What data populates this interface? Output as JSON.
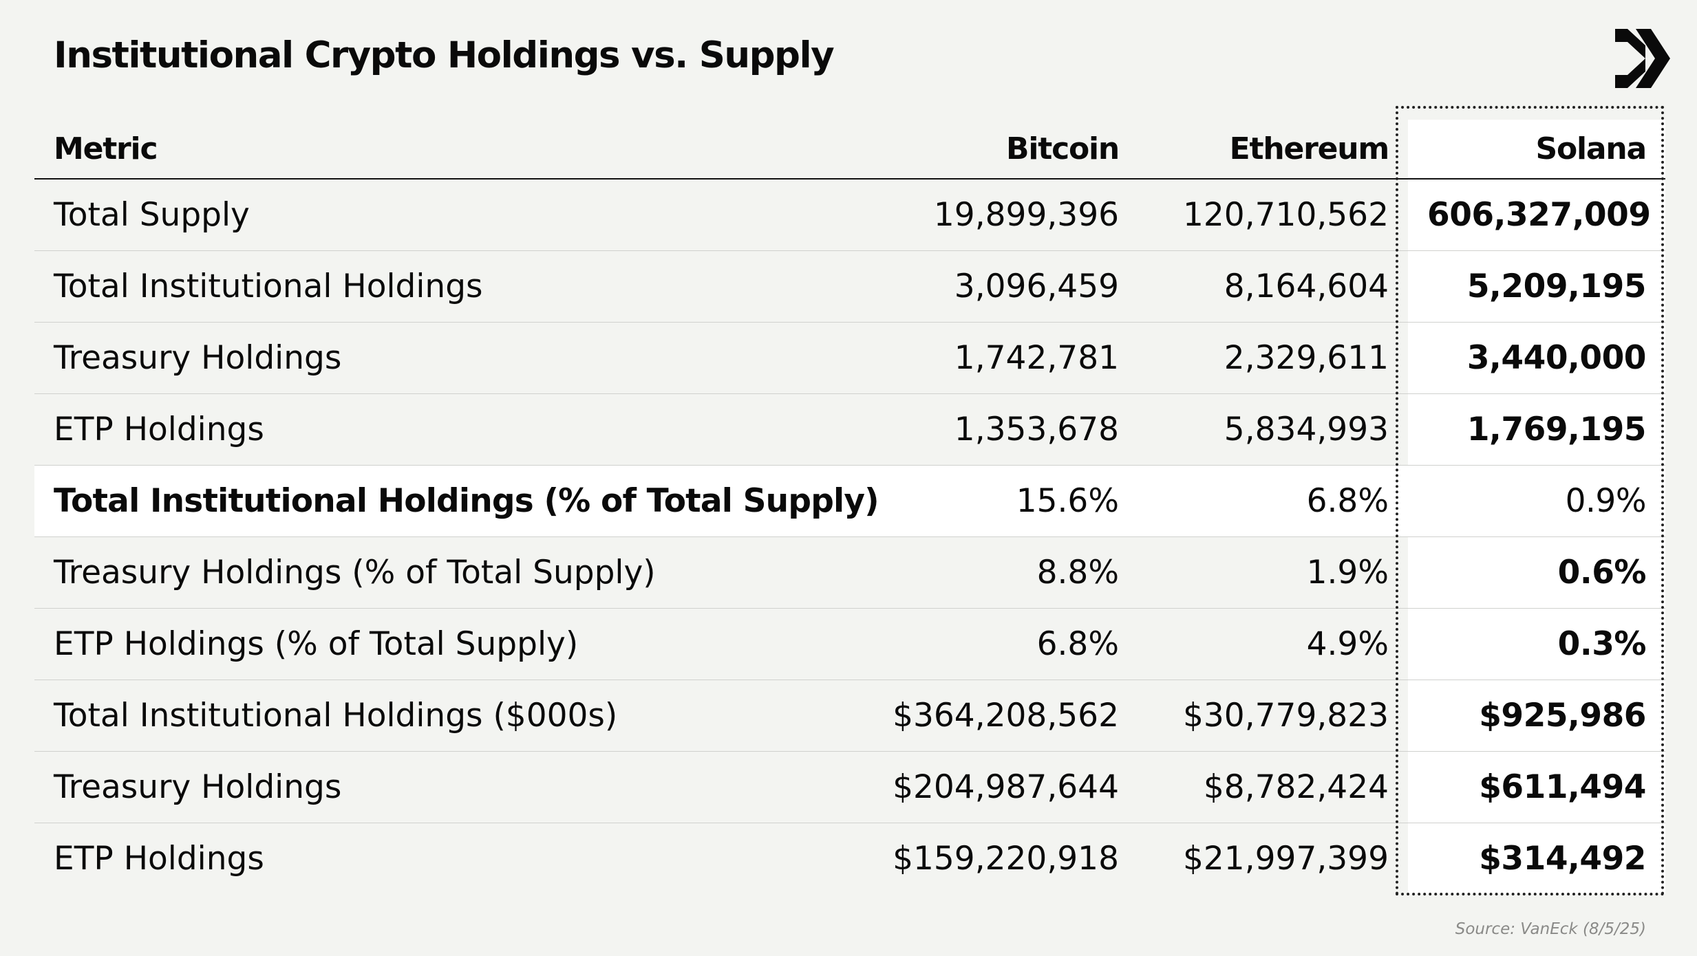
{
  "title": "Institutional Crypto Holdings vs. Supply",
  "logo": {
    "icon": "vaneck-chevron-logo"
  },
  "chart_data": {
    "type": "table",
    "columns": [
      "Metric",
      "Bitcoin",
      "Ethereum",
      "Solana"
    ],
    "highlighted_column": "Solana",
    "highlighted_row": "Total Institutional Holdings (% of Total Supply)",
    "rows": [
      {
        "label": "Total Supply",
        "btc": "19,899,396",
        "eth": "120,710,562",
        "sol": "606,327,009"
      },
      {
        "label": "Total Institutional Holdings",
        "btc": "3,096,459",
        "eth": "8,164,604",
        "sol": "5,209,195"
      },
      {
        "label": "Treasury Holdings",
        "btc": "1,742,781",
        "eth": "2,329,611",
        "sol": "3,440,000"
      },
      {
        "label": "ETP Holdings",
        "btc": "1,353,678",
        "eth": "5,834,993",
        "sol": "1,769,195"
      },
      {
        "label": "Total Institutional Holdings (% of Total Supply)",
        "btc": "15.6%",
        "eth": "6.8%",
        "sol": "0.9%"
      },
      {
        "label": "Treasury Holdings (% of Total Supply)",
        "btc": "8.8%",
        "eth": "1.9%",
        "sol": "0.6%"
      },
      {
        "label": "ETP Holdings (% of Total Supply)",
        "btc": "6.8%",
        "eth": "4.9%",
        "sol": "0.3%"
      },
      {
        "label": "Total Institutional Holdings ($000s)",
        "btc": "$364,208,562",
        "eth": "$30,779,823",
        "sol": "$925,986"
      },
      {
        "label": "Treasury Holdings",
        "btc": "$204,987,644",
        "eth": "$8,782,424",
        "sol": "$611,494"
      },
      {
        "label": "ETP Holdings",
        "btc": "$159,220,918",
        "eth": "$21,997,399",
        "sol": "$314,492"
      }
    ]
  },
  "source": "Source: VanEck (8/5/25)"
}
